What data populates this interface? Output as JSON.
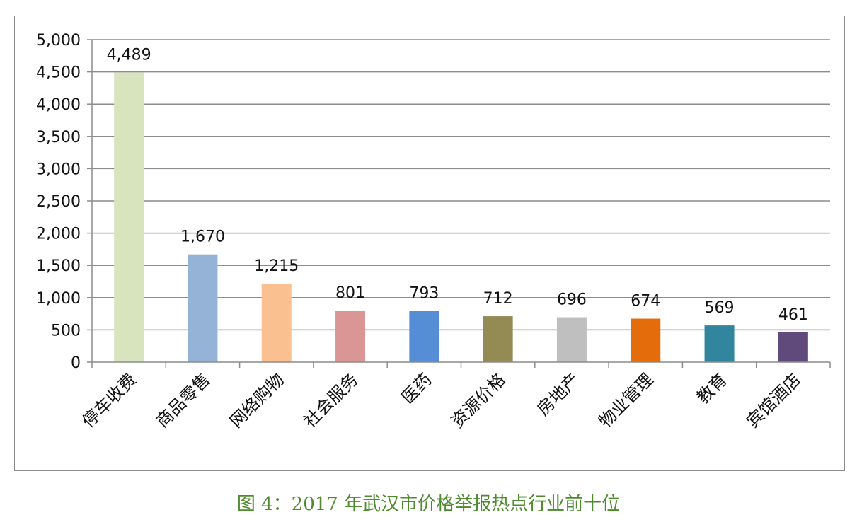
{
  "caption": "图 4：2017 年武汉市价格举报热点行业前十位",
  "chart_data": {
    "type": "bar",
    "title": "",
    "xlabel": "",
    "ylabel": "",
    "categories": [
      "停车收费",
      "商品零售",
      "网络购物",
      "社会服务",
      "医药",
      "资源价格",
      "房地产",
      "物业管理",
      "教育",
      "宾馆酒店"
    ],
    "values": [
      4489,
      1670,
      1215,
      801,
      793,
      712,
      696,
      674,
      569,
      461
    ],
    "value_labels": [
      "4,489",
      "1,670",
      "1,215",
      "801",
      "793",
      "712",
      "696",
      "674",
      "569",
      "461"
    ],
    "colors": [
      "#d7e4bd",
      "#95b3d7",
      "#fac090",
      "#d99694",
      "#558ed5",
      "#948a54",
      "#bfbfbf",
      "#e46c0a",
      "#31859c",
      "#604a7b"
    ],
    "ylim": [
      0,
      5000
    ],
    "yticks": [
      0,
      500,
      1000,
      1500,
      2000,
      2500,
      3000,
      3500,
      4000,
      4500,
      5000
    ],
    "ytick_labels": [
      "0",
      "500",
      "1,000",
      "1,500",
      "2,000",
      "2,500",
      "3,000",
      "3,500",
      "4,000",
      "4,500",
      "5,000"
    ],
    "grid": true,
    "legend": "none"
  }
}
